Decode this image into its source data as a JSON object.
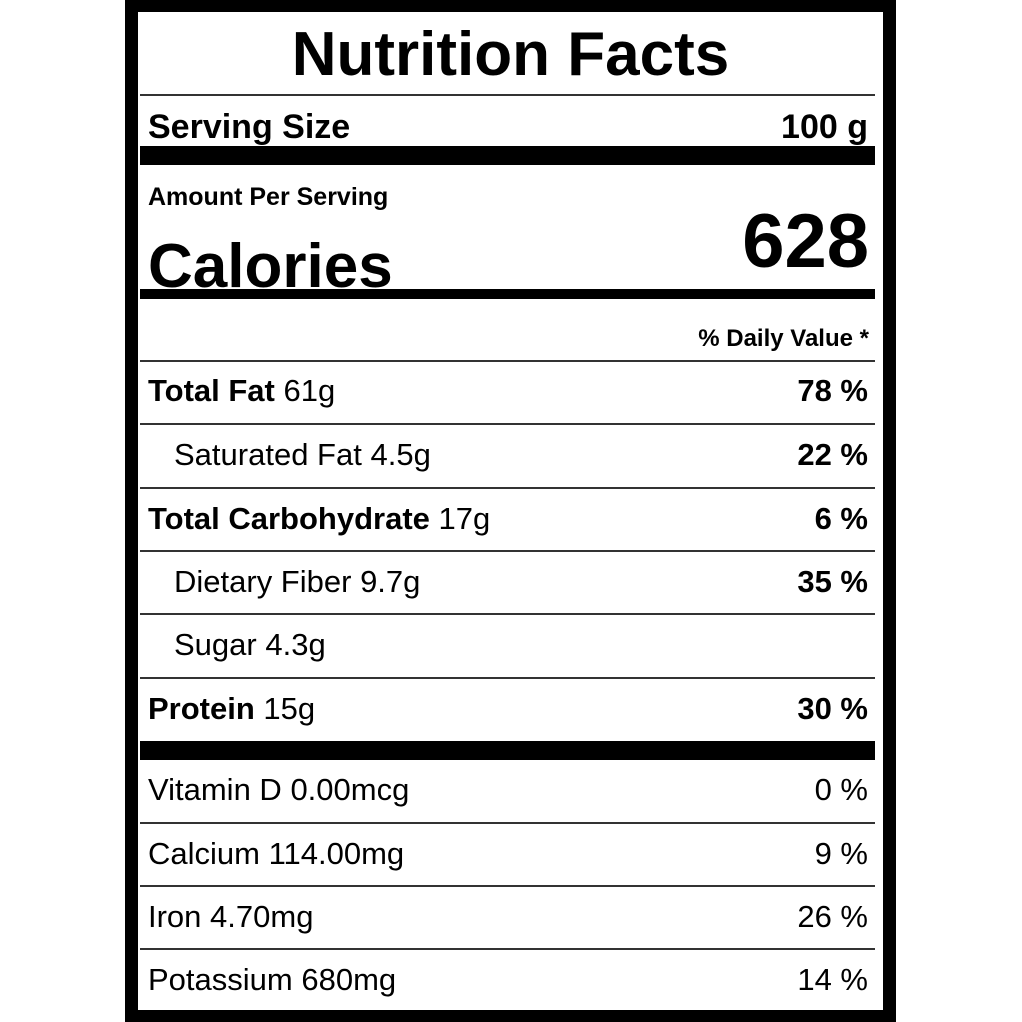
{
  "label": {
    "title": "Nutrition Facts",
    "serving_size_label": "Serving Size",
    "serving_size_value": "100 g",
    "amount_per_serving": "Amount Per Serving",
    "calories_label": "Calories",
    "calories_value": "628",
    "daily_value_header": "% Daily Value *",
    "nutrients": [
      {
        "name": "Total Fat",
        "amount": "61g",
        "dv": "78 %"
      },
      {
        "name": "Saturated Fat",
        "amount": "4.5g",
        "dv": "22 %"
      },
      {
        "name": "Total Carbohydrate",
        "amount": "17g",
        "dv": "6 %"
      },
      {
        "name": "Dietary Fiber",
        "amount": "9.7g",
        "dv": "35 %"
      },
      {
        "name": "Sugar",
        "amount": "4.3g",
        "dv": ""
      },
      {
        "name": "Protein",
        "amount": "15g",
        "dv": "30 %"
      }
    ],
    "vitamins": [
      {
        "name": "Vitamin D",
        "amount": "0.00mcg",
        "dv": "0 %"
      },
      {
        "name": "Calcium",
        "amount": "114.00mg",
        "dv": "9 %"
      },
      {
        "name": "Iron",
        "amount": "4.70mg",
        "dv": "26 %"
      },
      {
        "name": "Potassium",
        "amount": "680mg",
        "dv": "14 %"
      }
    ]
  }
}
